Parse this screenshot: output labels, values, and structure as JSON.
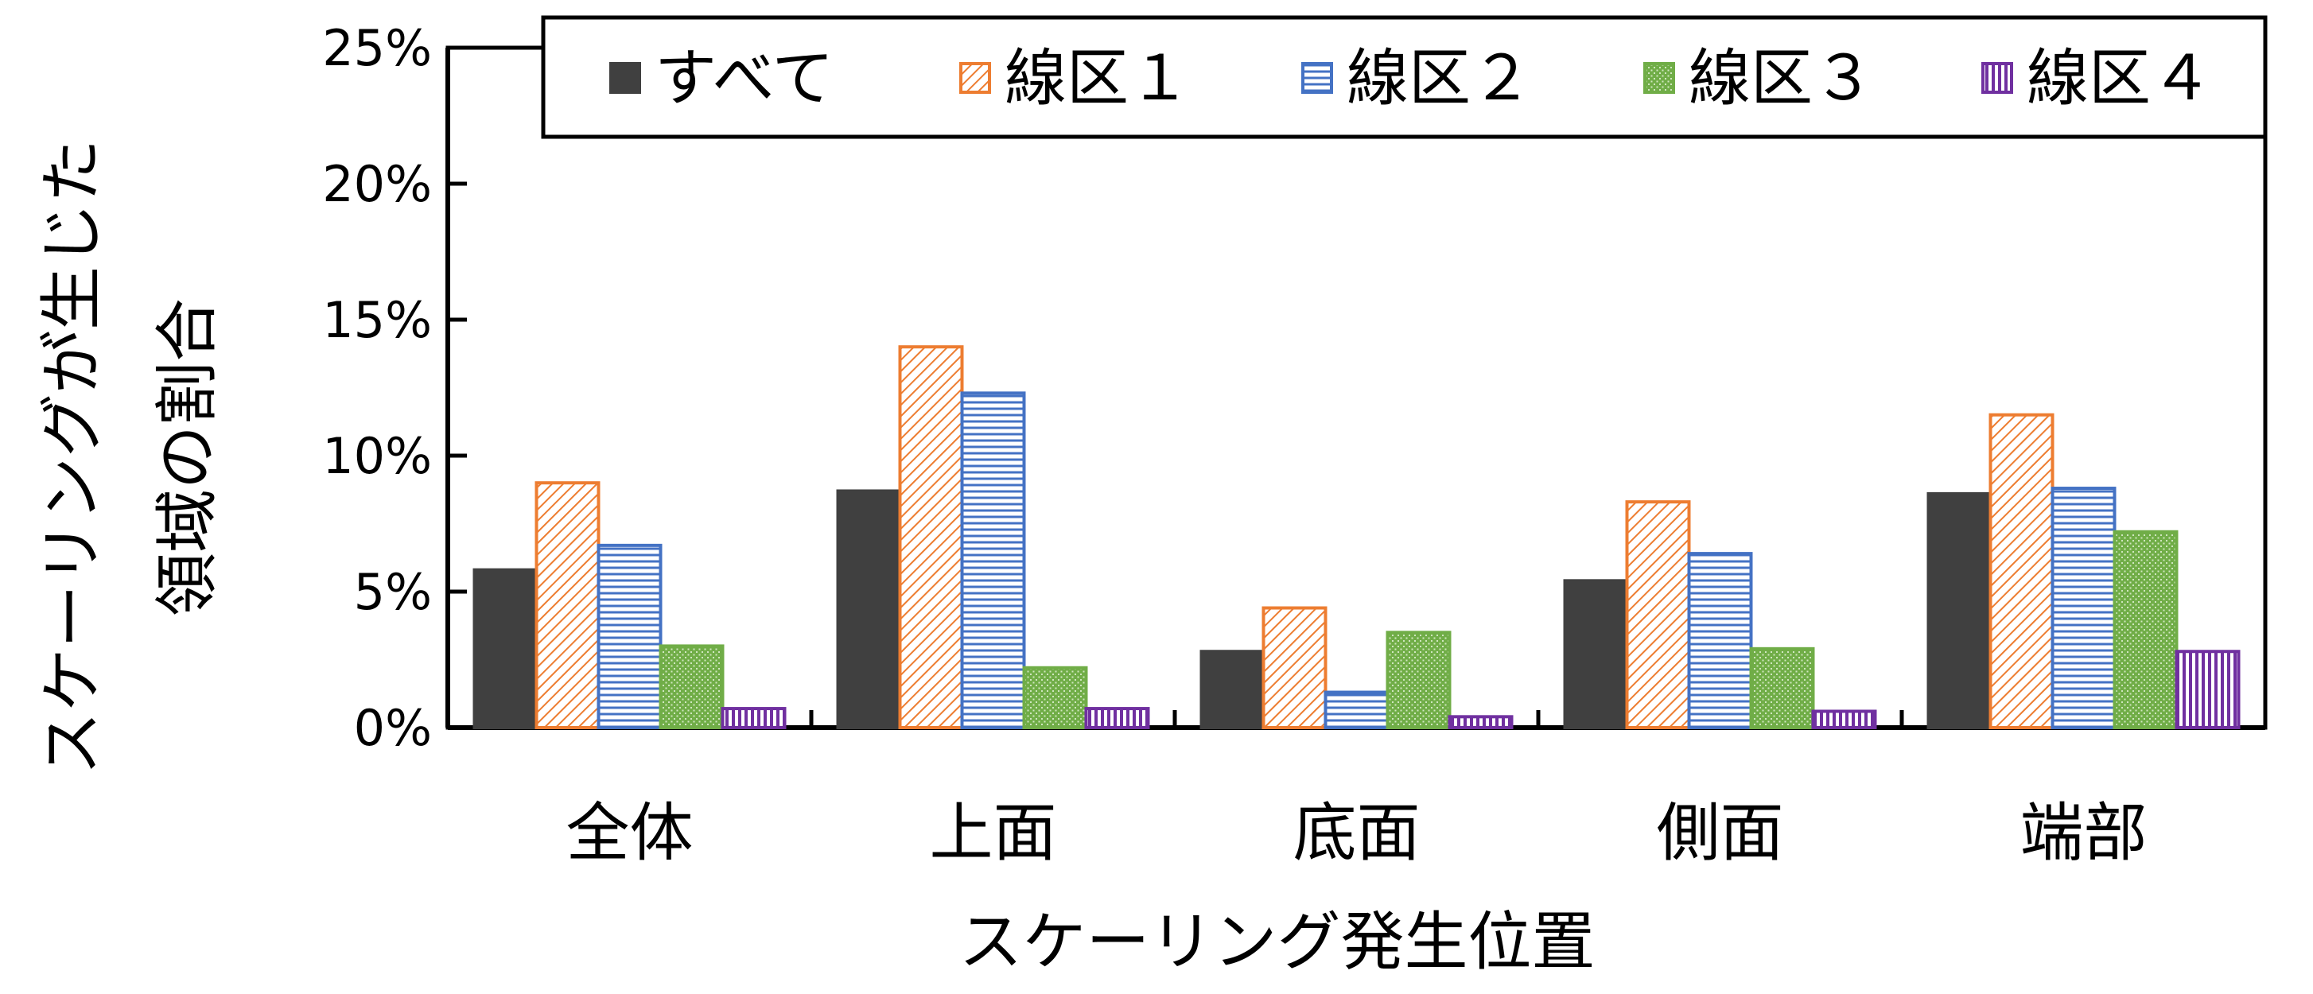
{
  "chart_data": {
    "type": "bar",
    "title": "",
    "xlabel": "スケーリング発生位置",
    "ylabel_lines": [
      "スケーリングが生じた",
      "領域の割合"
    ],
    "ylim": [
      0,
      25
    ],
    "yticks": [
      {
        "value": 0,
        "label": "0%"
      },
      {
        "value": 5,
        "label": "5%"
      },
      {
        "value": 10,
        "label": "10%"
      },
      {
        "value": 15,
        "label": "15%"
      },
      {
        "value": 20,
        "label": "20%"
      },
      {
        "value": 25,
        "label": "25%"
      }
    ],
    "grid": false,
    "legend_position": "top",
    "categories": [
      "全体",
      "上面",
      "底面",
      "側面",
      "端部"
    ],
    "series": [
      {
        "name": "すべて",
        "color": "#404040",
        "pattern": "solid",
        "values": [
          5.8,
          8.7,
          2.8,
          5.4,
          8.6
        ]
      },
      {
        "name": "線区１",
        "color": "#ED7D31",
        "pattern": "diagonal",
        "values": [
          9.0,
          14.0,
          4.4,
          8.3,
          11.5
        ]
      },
      {
        "name": "線区２",
        "color": "#4472C4",
        "pattern": "horizontal",
        "values": [
          6.7,
          12.3,
          1.3,
          6.4,
          8.8
        ]
      },
      {
        "name": "線区３",
        "color": "#70AD47",
        "pattern": "dots",
        "values": [
          3.0,
          2.2,
          3.5,
          2.9,
          7.2
        ]
      },
      {
        "name": "線区４",
        "color": "#7030A0",
        "pattern": "vertical",
        "values": [
          0.7,
          0.7,
          0.4,
          0.6,
          2.8
        ]
      }
    ]
  }
}
